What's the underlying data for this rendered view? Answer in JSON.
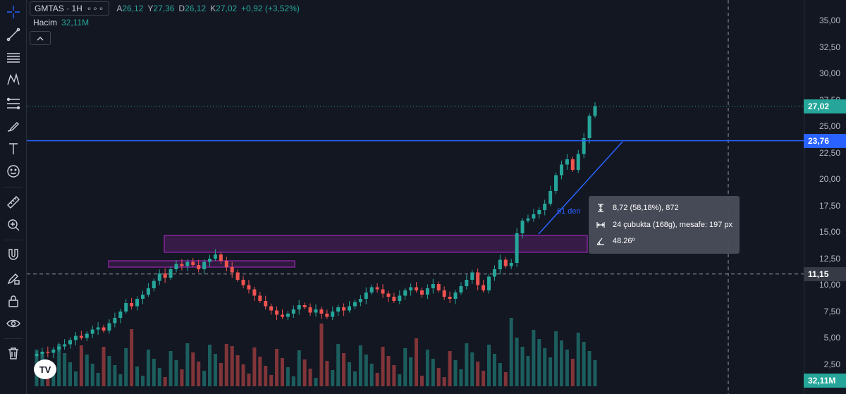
{
  "symbol": {
    "name": "GMTAS · 1H",
    "menu_dots": "∘∘∘"
  },
  "ohlc": [
    {
      "key": "A",
      "value": "26,12"
    },
    {
      "key": "Y",
      "value": "27,36"
    },
    {
      "key": "D",
      "value": "26,12"
    },
    {
      "key": "K",
      "value": "27,02"
    }
  ],
  "change": "+0,92 (+3,52%)",
  "volume": {
    "label": "Hacim",
    "value": "32,11M"
  },
  "collapse_icon": "chevron-up-icon",
  "colors": {
    "background": "#131722",
    "up": "#26a69a",
    "down": "#ef5350",
    "accent": "#2962ff",
    "zone": "#9c27b0"
  },
  "toolbar": [
    "crosshair-icon",
    "trend-line-icon",
    "horizontal-lines-icon",
    "pattern-icon",
    "fib-icon",
    "brush-icon",
    "text-icon",
    "emoji-icon",
    "ruler-icon",
    "zoom-icon",
    "magnet-icon",
    "lock-pencil-icon",
    "lock-icon",
    "eye-icon",
    "trash-icon"
  ],
  "price_axis": {
    "ticks": [
      "35,00",
      "32,50",
      "30,00",
      "27,50",
      "25,00",
      "22,50",
      "20,00",
      "17,50",
      "15,00",
      "12,50",
      "10,00",
      "7,50",
      "5,00",
      "2,50"
    ],
    "last_price": "27,02",
    "line_price": "23,76",
    "crosshair_price": "11,15",
    "volume_label": "32,11M"
  },
  "measure": {
    "price_range": "8,72 (58,18%), 872",
    "bars_range": "24 çubukta (168g), mesafe: 197 px",
    "angle": "48.26º"
  },
  "annotation_text": "61 den",
  "chart_data": {
    "type": "candlestick",
    "symbol": "GMTAS",
    "interval": "1H",
    "ylim": [
      0,
      37
    ],
    "closes": [
      3.6,
      3.8,
      3.7,
      4.0,
      4.3,
      4.5,
      4.9,
      5.3,
      5.1,
      5.5,
      5.9,
      6.1,
      5.8,
      6.5,
      7.0,
      7.6,
      8.4,
      8.1,
      8.8,
      9.2,
      9.8,
      10.5,
      11.2,
      10.8,
      11.6,
      12.1,
      11.9,
      12.3,
      12.0,
      11.6,
      12.3,
      12.6,
      13.0,
      12.4,
      11.8,
      11.3,
      10.6,
      10.1,
      9.7,
      9.1,
      8.6,
      8.1,
      7.7,
      7.3,
      7.1,
      7.4,
      7.8,
      8.2,
      8.0,
      7.5,
      7.8,
      7.4,
      7.1,
      7.6,
      8.0,
      7.7,
      8.1,
      8.5,
      8.8,
      9.4,
      9.9,
      9.7,
      9.3,
      9.0,
      8.6,
      9.1,
      9.6,
      9.9,
      9.6,
      9.2,
      9.8,
      10.2,
      9.6,
      9.0,
      8.8,
      9.4,
      10.0,
      10.6,
      11.3,
      10.1,
      9.6,
      10.9,
      11.6,
      12.5,
      11.9,
      12.2,
      15.0,
      16.2,
      16.4,
      16.8,
      17.2,
      17.8,
      19.0,
      20.5,
      21.5,
      22.0,
      21.0,
      22.5,
      24.0,
      26.1,
      27.02
    ],
    "annotations": {
      "horizontal_line": 23.76,
      "crosshair_price": 11.15,
      "zones": [
        [
          13.2,
          14.8
        ],
        [
          11.8,
          12.4
        ]
      ]
    }
  }
}
